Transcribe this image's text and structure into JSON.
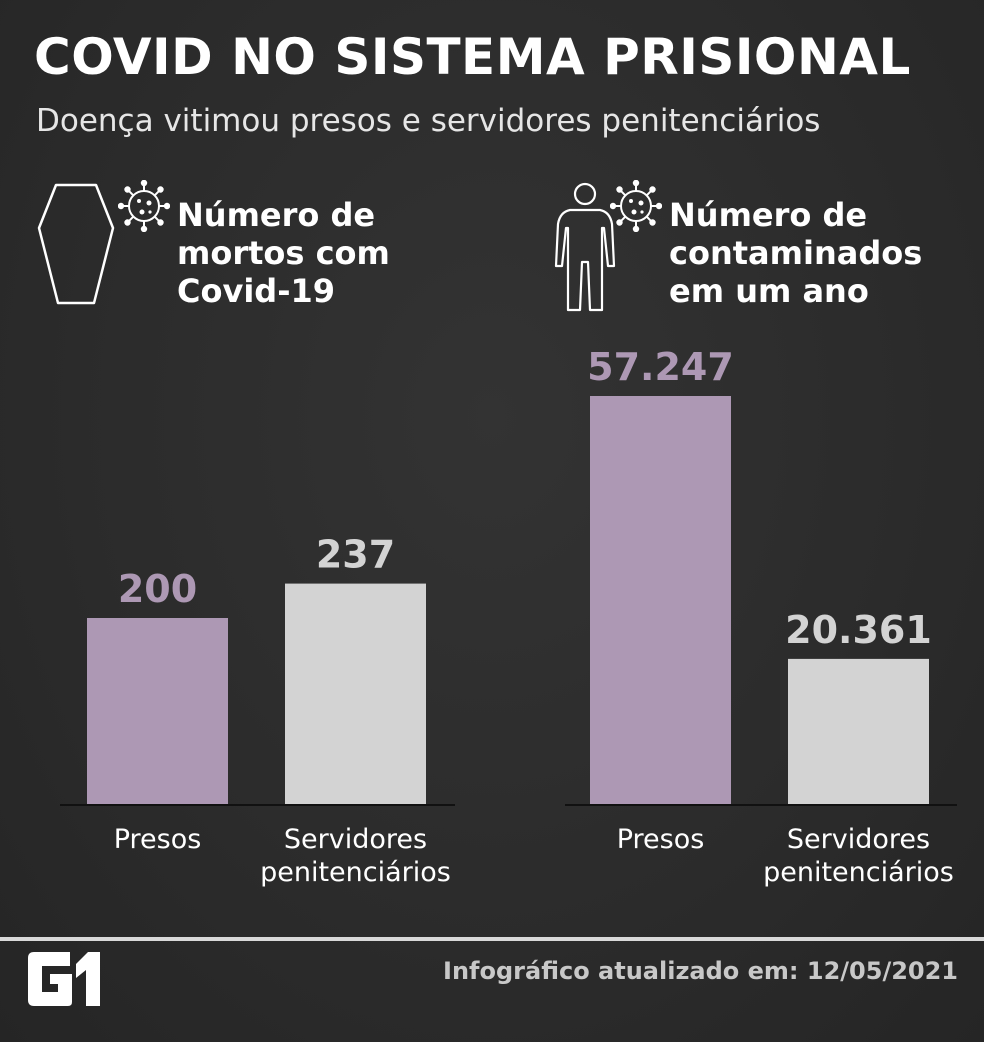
{
  "header": {
    "title": "COVID NO SISTEMA PRISIONAL",
    "subtitle": "Doença vitimou presos e servidores penitenciários"
  },
  "panels": [
    {
      "title_lines": [
        "Número de",
        "mortos com",
        "Covid-19"
      ],
      "icon": "coffin-icon"
    },
    {
      "title_lines": [
        "Número de",
        "contaminados",
        "em um ano"
      ],
      "icon": "person-icon"
    }
  ],
  "colors": {
    "presos": "#ad98b4",
    "servidores": "#d3d3d3",
    "axis": "#111111",
    "category_label": "#ffffff"
  },
  "chart_data": [
    {
      "type": "bar",
      "title": "Número de mortos com Covid-19",
      "categories": [
        "Presos",
        "Servidores penitenciários"
      ],
      "values": [
        200,
        237
      ],
      "value_labels": [
        "200",
        "237"
      ]
    },
    {
      "type": "bar",
      "title": "Número de contaminados em um ano",
      "categories": [
        "Presos",
        "Servidores penitenciários"
      ],
      "values": [
        57247,
        20361
      ],
      "value_labels": [
        "57.247",
        "20.361"
      ]
    }
  ],
  "footer": {
    "logo": "G1",
    "updated": "Infográfico atualizado em: 12/05/2021"
  }
}
